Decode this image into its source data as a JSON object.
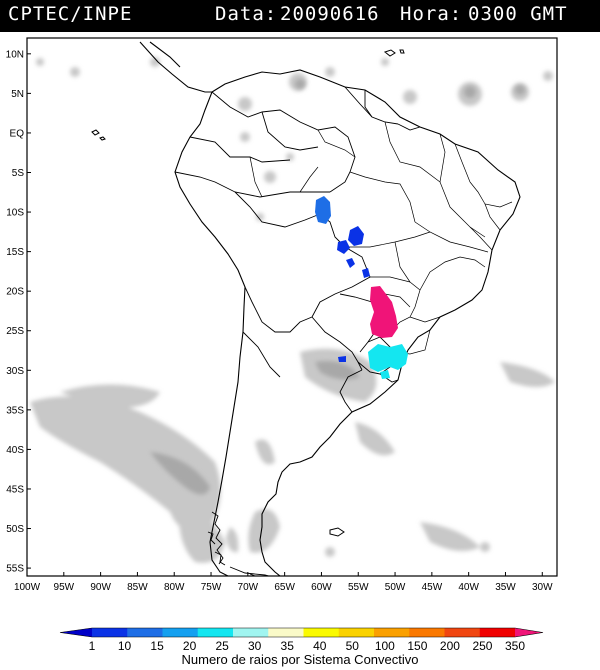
{
  "header": {
    "source": "CPTEC/INPE",
    "date_label": "Data:",
    "date_value": "20090616",
    "time_label": "Hora:",
    "time_value": "0300 GMT"
  },
  "map": {
    "lat_labels": [
      "10N",
      "5N",
      "EQ",
      "5S",
      "10S",
      "15S",
      "20S",
      "25S",
      "30S",
      "35S",
      "40S",
      "45S",
      "50S",
      "55S"
    ],
    "lon_labels": [
      "100W",
      "95W",
      "90W",
      "85W",
      "80W",
      "75W",
      "70W",
      "65W",
      "60W",
      "55W",
      "50W",
      "45W",
      "40W",
      "35W",
      "30W"
    ],
    "lat_values": [
      10,
      5,
      0,
      -5,
      -10,
      -15,
      -20,
      -25,
      -30,
      -35,
      -40,
      -45,
      -50,
      -55
    ],
    "lon_values": [
      -100,
      -95,
      -90,
      -85,
      -80,
      -75,
      -70,
      -65,
      -60,
      -55,
      -50,
      -45,
      -40,
      -35,
      -30
    ],
    "extent": {
      "lon_min": -100,
      "lon_max": -28,
      "lat_min": -56,
      "lat_max": 12
    },
    "systems": [
      {
        "lon": -60.2,
        "lat": -10.0,
        "count": 15,
        "color": "#1e6ee6"
      },
      {
        "lon": -57.5,
        "lat": -14.8,
        "count": 10,
        "color": "#0a32e6"
      },
      {
        "lon": -58.3,
        "lat": -16.5,
        "count": 10,
        "color": "#0a32e6"
      },
      {
        "lon": -55.8,
        "lat": -17.8,
        "count": 10,
        "color": "#0a32e6"
      },
      {
        "lon": -52.5,
        "lat": -23.0,
        "count": 350,
        "color": "#f01478"
      },
      {
        "lon": -50.0,
        "lat": -28.0,
        "count": 25,
        "color": "#14e6f0"
      },
      {
        "lon": -57.0,
        "lat": -28.5,
        "count": 10,
        "color": "#0a32e6"
      }
    ]
  },
  "legend": {
    "values": [
      "1",
      "10",
      "15",
      "20",
      "25",
      "30",
      "35",
      "40",
      "50",
      "100",
      "150",
      "200",
      "250",
      "350"
    ],
    "colors": [
      "#0000c8",
      "#0a32e6",
      "#1e6ee6",
      "#14a0f0",
      "#14e6f0",
      "#a0f5f0",
      "#fafac8",
      "#fafa00",
      "#fad200",
      "#faa000",
      "#fa7800",
      "#f04610",
      "#f00000",
      "#f01478"
    ],
    "caption": "Numero de raios por Sistema Convectivo"
  }
}
